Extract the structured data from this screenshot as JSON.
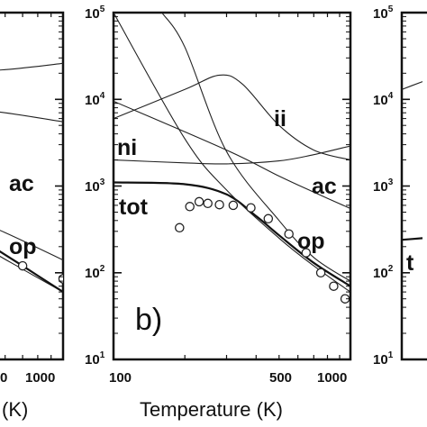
{
  "chart_data": [
    {
      "type": "line",
      "panel_label": "",
      "xlabel": "(K)",
      "ylabel": "",
      "x_scale": "log",
      "y_scale": "log",
      "xlim": [
        100,
        1000
      ],
      "ylim": [
        10,
        100000
      ],
      "x_tick_labels": [
        "0",
        "1000"
      ],
      "curve_labels": [
        "ac",
        "op"
      ],
      "series": [
        {
          "name": "ac",
          "x": [
            100,
            300,
            600,
            1000
          ],
          "y": [
            2700,
            700,
            290,
            140
          ]
        },
        {
          "name": "op",
          "x": [
            100,
            300,
            500,
            700,
            1000
          ],
          "y": [
            100000,
            600,
            200,
            110,
            60
          ]
        },
        {
          "name": "",
          "x": [
            100,
            300,
            600,
            1000
          ],
          "y": [
            19000,
            19500,
            22000,
            26000
          ]
        },
        {
          "name": "",
          "x": [
            100,
            300,
            600,
            1000
          ],
          "y": [
            17000,
            9000,
            7000,
            5500
          ]
        },
        {
          "name": "",
          "x": [
            100,
            300,
            500,
            700,
            1000
          ],
          "y": [
            1000,
            650,
            230,
            120,
            60
          ]
        },
        {
          "name": "",
          "x": [
            300,
            500,
            700,
            1000
          ],
          "y": [
            450,
            190,
            120,
            85
          ],
          "markers": true
        }
      ]
    },
    {
      "type": "line",
      "panel_label": "b)",
      "xlabel": "Temperature (K)",
      "ylabel": "",
      "x_scale": "log",
      "y_scale": "log",
      "xlim": [
        100,
        1000
      ],
      "ylim": [
        10,
        100000
      ],
      "x_tick_labels": [
        "100",
        "500",
        "1000"
      ],
      "y_tick_labels": [
        "10",
        "10",
        "10",
        "10",
        "10"
      ],
      "y_tick_exponents": [
        "1",
        "2",
        "3",
        "4",
        "5"
      ],
      "curve_labels": [
        "ii",
        "ni",
        "ac",
        "tot",
        "op"
      ],
      "series": [
        {
          "name": "ii",
          "x": [
            100,
            200,
            280,
            350,
            500,
            700,
            1000
          ],
          "y": [
            6000,
            13000,
            19000,
            15000,
            5000,
            2600,
            2000
          ]
        },
        {
          "name": "ni",
          "x": [
            100,
            200,
            300,
            500,
            700,
            1000
          ],
          "y": [
            2000,
            1850,
            1800,
            1950,
            2300,
            2900
          ]
        },
        {
          "name": "ac",
          "x": [
            100,
            300,
            500,
            700,
            1000
          ],
          "y": [
            9500,
            2600,
            1300,
            850,
            550
          ]
        },
        {
          "name": "tot",
          "x": [
            100,
            200,
            300,
            400,
            500,
            700,
            1000
          ],
          "y": [
            1100,
            1050,
            800,
            450,
            270,
            130,
            70
          ]
        },
        {
          "name": "op",
          "x": [
            100,
            200,
            300,
            500,
            700,
            1000
          ],
          "y": [
            100000,
            3500,
            900,
            250,
            120,
            60
          ]
        },
        {
          "name": "",
          "x": [
            160,
            200,
            300,
            500,
            700,
            1000
          ],
          "y": [
            100000,
            40000,
            2500,
            400,
            150,
            80
          ]
        },
        {
          "name": "",
          "x": [
            190,
            210,
            230,
            250,
            280,
            320,
            380,
            450,
            550,
            650,
            750,
            850,
            950
          ],
          "y": [
            330,
            580,
            660,
            630,
            610,
            600,
            560,
            420,
            280,
            170,
            100,
            70,
            50
          ],
          "markers": true
        }
      ]
    },
    {
      "type": "line",
      "panel_label": "",
      "xlabel": "",
      "ylabel": "",
      "x_scale": "log",
      "y_scale": "log",
      "xlim": [
        100,
        1000
      ],
      "ylim": [
        10,
        100000
      ],
      "y_tick_labels": [
        "10",
        "10",
        "10",
        "10",
        "10"
      ],
      "y_tick_exponents": [
        "1",
        "2",
        "3",
        "4",
        "5"
      ],
      "curve_labels": [
        "t"
      ],
      "series": [
        {
          "name": "",
          "x": [
            100,
            120
          ],
          "y": [
            13000,
            16000
          ]
        },
        {
          "name": "",
          "x": [
            100,
            120
          ],
          "y": [
            240,
            250
          ]
        }
      ]
    }
  ]
}
